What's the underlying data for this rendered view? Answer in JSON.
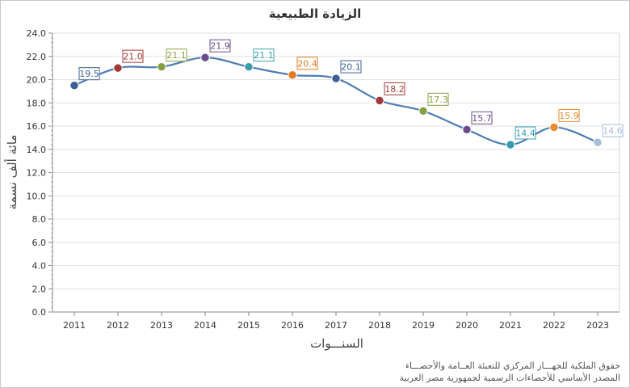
{
  "chart_data": {
    "type": "line",
    "title": "الزيادة الطبيعية",
    "xlabel": "السنـــوات",
    "ylabel": "مائة ألف نسمة",
    "categories": [
      "2011",
      "2012",
      "2013",
      "2014",
      "2015",
      "2016",
      "2017",
      "2018",
      "2019",
      "2020",
      "2021",
      "2022",
      "2023"
    ],
    "series": [
      {
        "values": [
          19.5,
          21.0,
          21.1,
          21.9,
          21.1,
          20.4,
          20.1,
          18.2,
          17.3,
          15.7,
          14.4,
          15.9,
          14.6
        ]
      }
    ],
    "data_labels": [
      "19.5",
      "21.0",
      "21.1",
      "21.9",
      "21.1",
      "20.4",
      "20.1",
      "18.2",
      "17.3",
      "15.7",
      "14.4",
      "15.9",
      "14.6"
    ],
    "yticks": [
      "0.0",
      "2.0",
      "4.0",
      "6.0",
      "8.0",
      "10.0",
      "12.0",
      "14.0",
      "16.0",
      "18.0",
      "20.0",
      "22.0",
      "24.0"
    ],
    "ylim": [
      0,
      24
    ],
    "grid": true,
    "line_color": "#4f7db3",
    "point_colors": [
      "#3e5f95",
      "#a33a3a",
      "#85a040",
      "#6a4c8c",
      "#3a9bb0",
      "#e07b1e",
      "#3e5f95",
      "#a33a3a",
      "#85a040",
      "#6a4c8c",
      "#3a9bb0",
      "#e98a2c",
      "#a9bcd8"
    ]
  },
  "footnotes": [
    "حقوق الملكية للجهـــاز المركزي للتعبئة العــامة والأحصـــاء",
    "المصدر الأساسي للأحصاءات الرسمية لجمهورية مصر العربية"
  ]
}
